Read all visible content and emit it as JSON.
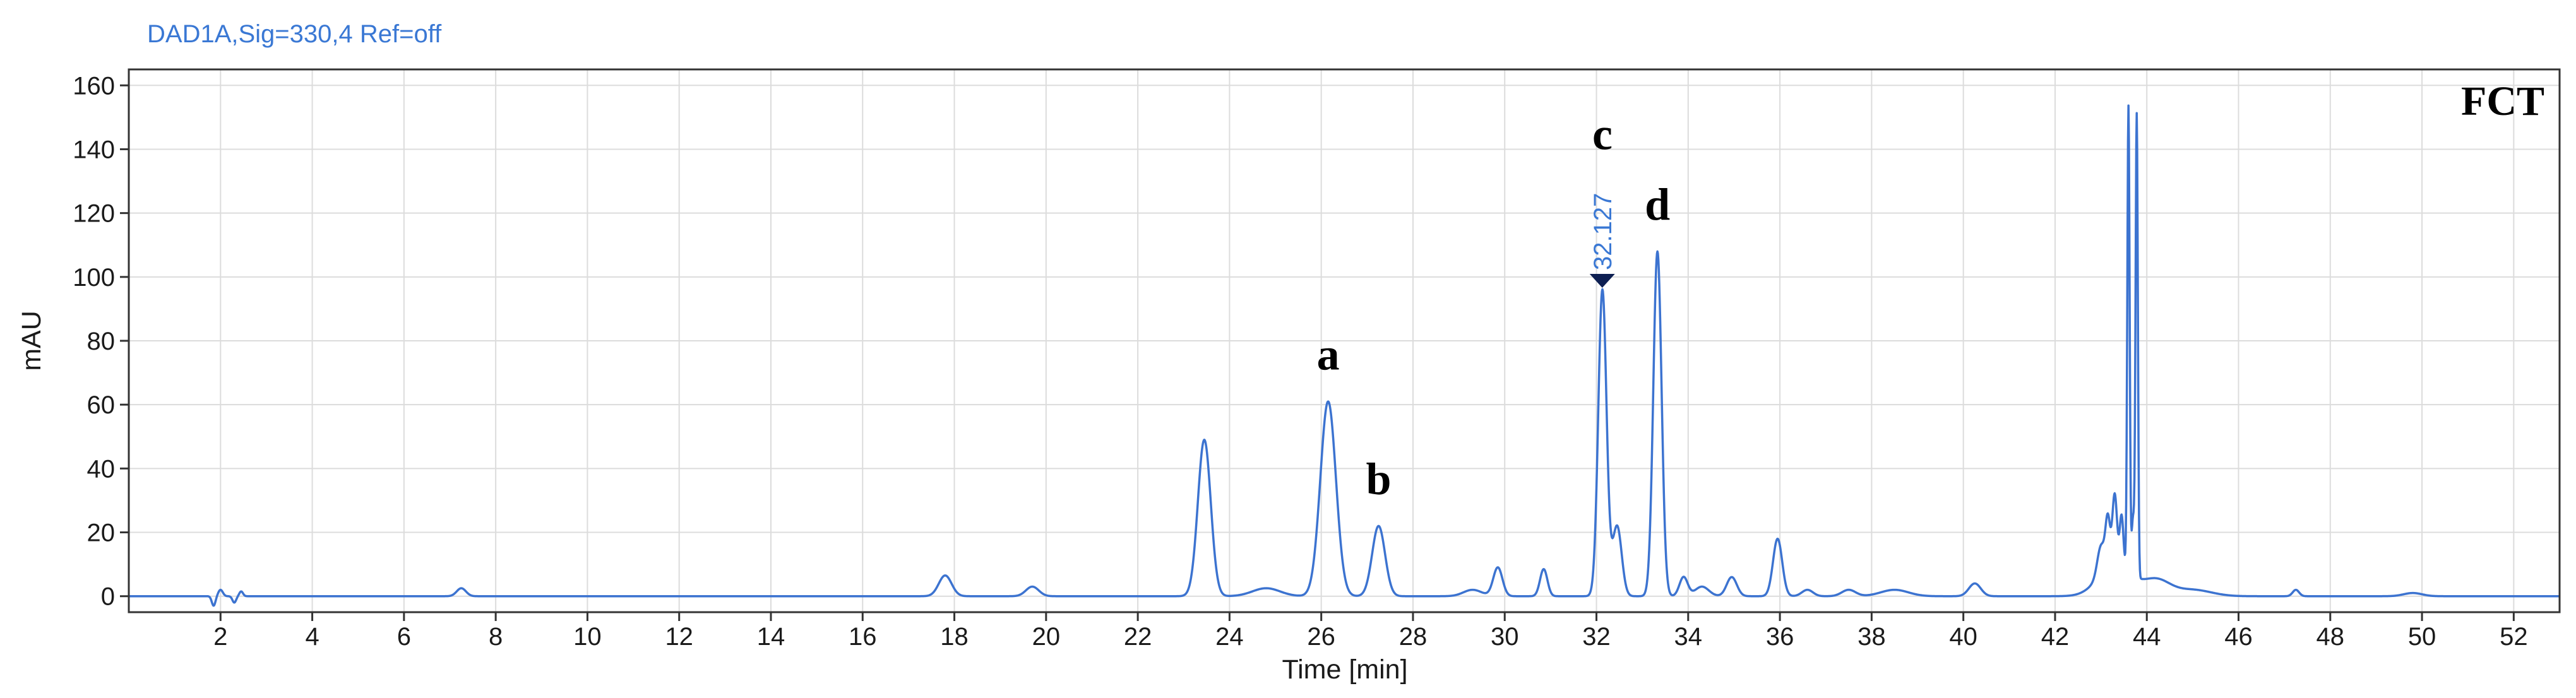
{
  "chart_data": {
    "type": "line",
    "title": "DAD1A,Sig=330,4  Ref=off",
    "sample_tag": "FCT",
    "xlabel": "Time [min]",
    "ylabel": "mAU",
    "xlim": [
      0,
      53
    ],
    "ylim": [
      -5,
      165
    ],
    "x_ticks": [
      2,
      4,
      6,
      8,
      10,
      12,
      14,
      16,
      18,
      20,
      22,
      24,
      26,
      28,
      30,
      32,
      34,
      36,
      38,
      40,
      42,
      44,
      46,
      48,
      50,
      52
    ],
    "y_ticks": [
      0,
      20,
      40,
      60,
      80,
      100,
      120,
      140,
      160
    ],
    "grid": true,
    "series": [
      {
        "color": "#3c73d0",
        "baseline": 0,
        "peaks": [
          {
            "rt": 1.85,
            "height": -3,
            "width": 0.04
          },
          {
            "rt": 2.0,
            "height": 2,
            "width": 0.05
          },
          {
            "rt": 2.3,
            "height": -2,
            "width": 0.04
          },
          {
            "rt": 2.45,
            "height": 1.5,
            "width": 0.04
          },
          {
            "rt": 7.25,
            "height": 2.5,
            "width": 0.1
          },
          {
            "rt": 17.8,
            "height": 6.5,
            "width": 0.14
          },
          {
            "rt": 19.7,
            "height": 3,
            "width": 0.14
          },
          {
            "rt": 23.45,
            "height": 49,
            "width": 0.14
          },
          {
            "rt": 24.8,
            "height": 2.5,
            "width": 0.3
          },
          {
            "rt": 26.15,
            "height": 61,
            "width": 0.17
          },
          {
            "rt": 27.25,
            "height": 22,
            "width": 0.14
          },
          {
            "rt": 29.3,
            "height": 2,
            "width": 0.2
          },
          {
            "rt": 29.85,
            "height": 9,
            "width": 0.1
          },
          {
            "rt": 30.85,
            "height": 8.5,
            "width": 0.08
          },
          {
            "rt": 32.13,
            "height": 96,
            "width": 0.09
          },
          {
            "rt": 32.45,
            "height": 22,
            "width": 0.1
          },
          {
            "rt": 33.33,
            "height": 108,
            "width": 0.09
          },
          {
            "rt": 33.9,
            "height": 6,
            "width": 0.09
          },
          {
            "rt": 34.3,
            "height": 3,
            "width": 0.15
          },
          {
            "rt": 34.95,
            "height": 6,
            "width": 0.11
          },
          {
            "rt": 35.95,
            "height": 18,
            "width": 0.1
          },
          {
            "rt": 36.6,
            "height": 2,
            "width": 0.12
          },
          {
            "rt": 37.5,
            "height": 2,
            "width": 0.15
          },
          {
            "rt": 38.5,
            "height": 2,
            "width": 0.3
          },
          {
            "rt": 40.25,
            "height": 4,
            "width": 0.13
          },
          {
            "rt": 43.0,
            "height": 9,
            "width": 0.08
          },
          {
            "rt": 43.15,
            "height": 15,
            "width": 0.05
          },
          {
            "rt": 43.3,
            "height": 22,
            "width": 0.05
          },
          {
            "rt": 43.45,
            "height": 16,
            "width": 0.04
          },
          {
            "rt": 43.6,
            "height": 146,
            "width": 0.025
          },
          {
            "rt": 43.7,
            "height": 18,
            "width": 0.03
          },
          {
            "rt": 43.78,
            "height": 145,
            "width": 0.025
          },
          {
            "rt": 43.3,
            "height": 10,
            "width": 0.35
          },
          {
            "rt": 44.2,
            "height": 5,
            "width": 0.3
          },
          {
            "rt": 45.0,
            "height": 2,
            "width": 0.4
          },
          {
            "rt": 47.25,
            "height": 2,
            "width": 0.07
          },
          {
            "rt": 49.8,
            "height": 1,
            "width": 0.2
          }
        ]
      }
    ],
    "annotations": [
      {
        "text": "a",
        "x": 26.15,
        "y": 71
      },
      {
        "text": "b",
        "x": 27.25,
        "y": 32
      },
      {
        "text": "c",
        "x": 32.13,
        "y": 140
      },
      {
        "text": "d",
        "x": 33.33,
        "y": 118
      }
    ],
    "rt_label": {
      "text": "32.127",
      "x": 32.127,
      "y": 97
    }
  }
}
